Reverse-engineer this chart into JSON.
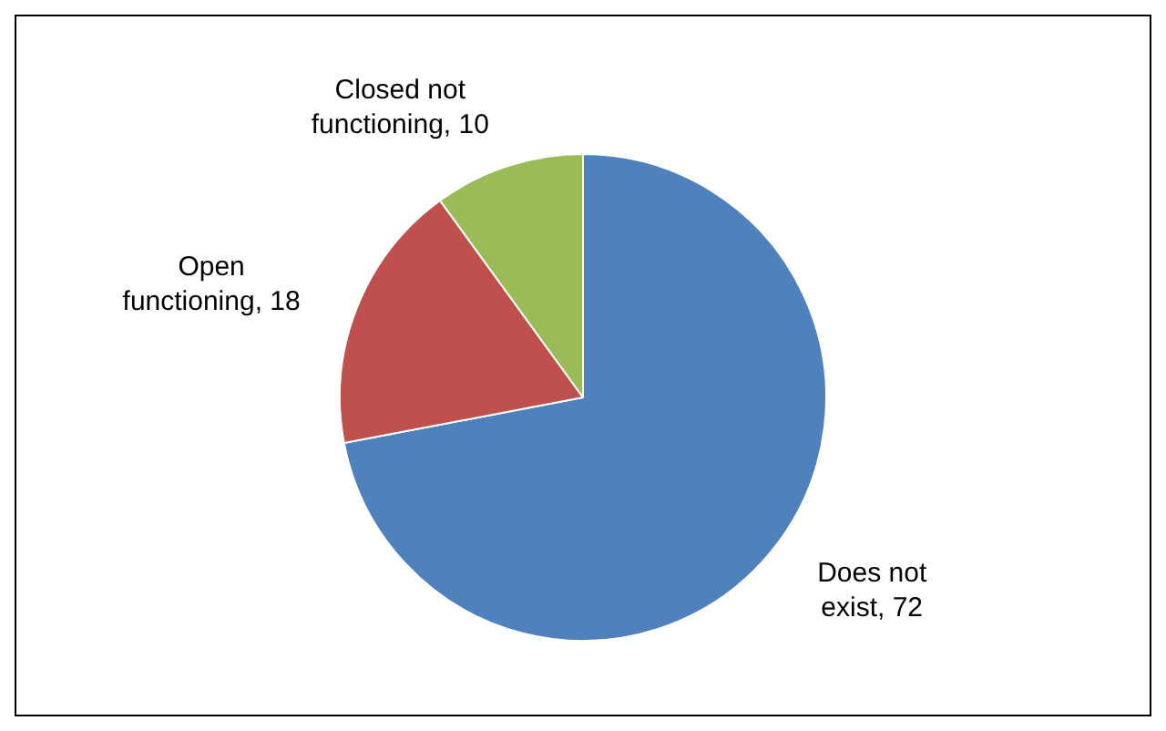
{
  "chart_data": {
    "type": "pie",
    "categories": [
      "Does not exist",
      "Open functioning",
      "Closed not functioning"
    ],
    "values": [
      72,
      18,
      10
    ],
    "colors": [
      "#4f81bd",
      "#c0504d",
      "#9bbb59"
    ],
    "value_labels": [
      ", 72",
      ", 18",
      ", 10"
    ],
    "legend": false
  }
}
